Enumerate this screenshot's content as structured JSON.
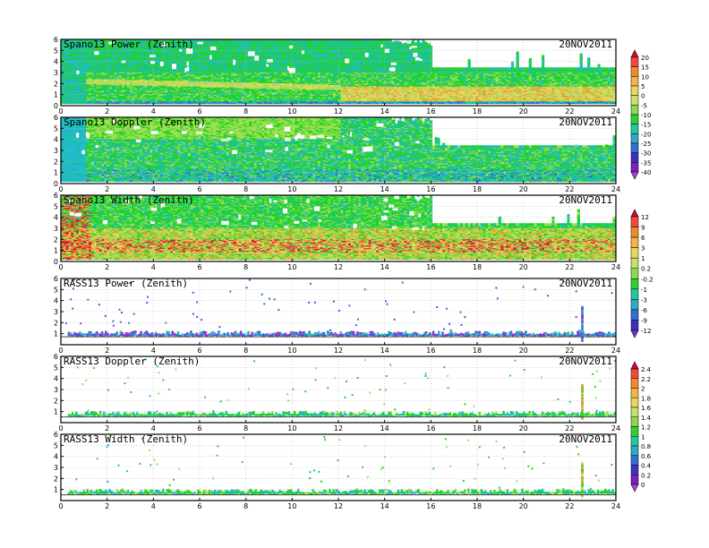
{
  "chart_data": [
    {
      "type": "heatmap",
      "title": "Spano13 Power (Zenith)",
      "date": "20NOV2011",
      "xlim": [
        0,
        24
      ],
      "ylim": [
        0,
        6
      ],
      "x_ticks": [
        "0",
        "2",
        "4",
        "6",
        "8",
        "10",
        "12",
        "14",
        "16",
        "18",
        "20",
        "22",
        "24"
      ],
      "y_ticks": [
        "0",
        "1",
        "2",
        "3",
        "4",
        "5",
        "6"
      ],
      "grid": true,
      "colorbar": "power",
      "coverage_top_before_16h": 6,
      "coverage_top_after_16h": 3.3,
      "band_height": 1.7
    },
    {
      "type": "heatmap",
      "title": "Spano13 Doppler (Zenith)",
      "date": "20NOV2011",
      "xlim": [
        0,
        24
      ],
      "ylim": [
        0,
        6
      ],
      "x_ticks": [
        "0",
        "2",
        "4",
        "6",
        "8",
        "10",
        "12",
        "14",
        "16",
        "18",
        "20",
        "22",
        "24"
      ],
      "y_ticks": [
        "0",
        "1",
        "2",
        "3",
        "4",
        "5",
        "6"
      ],
      "grid": true,
      "colorbar": "power",
      "coverage_top_before_16h": 6,
      "coverage_top_after_16h": 3.3
    },
    {
      "type": "heatmap",
      "title": "Spano13 Width (Zenith)",
      "date": "20NOV2011",
      "xlim": [
        0,
        24
      ],
      "ylim": [
        0,
        6
      ],
      "x_ticks": [
        "0",
        "2",
        "4",
        "6",
        "8",
        "10",
        "12",
        "14",
        "16",
        "18",
        "20",
        "22",
        "24"
      ],
      "y_ticks": [
        "0",
        "1",
        "2",
        "3",
        "4",
        "5",
        "6"
      ],
      "grid": true,
      "colorbar": "width",
      "coverage_top_before_16h": 6,
      "coverage_top_after_16h": 3.3,
      "band_height": 2
    },
    {
      "type": "heatmap",
      "title": "RASS13 Power (Zenith)",
      "date": "20NOV2011",
      "xlim": [
        0,
        24
      ],
      "ylim": [
        0,
        6
      ],
      "x_ticks": [
        "0",
        "2",
        "4",
        "6",
        "8",
        "10",
        "12",
        "14",
        "16",
        "18",
        "20",
        "22",
        "24"
      ],
      "y_ticks": [
        "1",
        "2",
        "3",
        "4",
        "5",
        "6"
      ],
      "grid": true,
      "colorbar": "rass",
      "layer_height": 0.8,
      "spike_time": 22.5
    },
    {
      "type": "heatmap",
      "title": "RASS13 Doppler (Zenith)",
      "date": "20NOV2011",
      "xlim": [
        0,
        24
      ],
      "ylim": [
        0,
        6
      ],
      "x_ticks": [
        "0",
        "2",
        "4",
        "6",
        "8",
        "10",
        "12",
        "14",
        "16",
        "18",
        "20",
        "22",
        "24"
      ],
      "y_ticks": [
        "1",
        "2",
        "3",
        "4",
        "5",
        "6"
      ],
      "grid": true,
      "colorbar": "doppler",
      "layer_height": 0.6,
      "spike_time": 22.5
    },
    {
      "type": "heatmap",
      "title": "RASS13 Width (Zenith)",
      "date": "20NOV2011",
      "xlim": [
        0,
        24
      ],
      "ylim": [
        0,
        6
      ],
      "x_ticks": [
        "0",
        "2",
        "4",
        "6",
        "8",
        "10",
        "12",
        "14",
        "16",
        "18",
        "20",
        "22",
        "24"
      ],
      "y_ticks": [
        "1",
        "2",
        "3",
        "4",
        "5",
        "6"
      ],
      "grid": true,
      "colorbar": "doppler",
      "layer_height": 0.6,
      "spike_time": 22.5
    }
  ],
  "colorbars": [
    {
      "id": "power",
      "labels": [
        "20",
        "15",
        "10",
        "5",
        "0",
        "-5",
        "-10",
        "-15",
        "-20",
        "-25",
        "-30",
        "-35",
        "-40"
      ],
      "colors": [
        "#e8003a",
        "#f04a3a",
        "#f48a2c",
        "#f6b24a",
        "#e8d860",
        "#c8e070",
        "#8ed850",
        "#30d030",
        "#20c8a0",
        "#30a8c8",
        "#3070d0",
        "#4030c0",
        "#7a20c0",
        "#b040e0"
      ]
    },
    {
      "id": "width",
      "labels": [
        "12",
        "9",
        "6",
        "3",
        "1",
        "0.2",
        "-0.2",
        "-1",
        "-3",
        "-6",
        "-9",
        "-12"
      ],
      "colors": [
        "#e8003a",
        "#f04a3a",
        "#f48a2c",
        "#f6b24a",
        "#e8d860",
        "#c8e070",
        "#8ed850",
        "#30d030",
        "#20c8a0",
        "#30a8c8",
        "#3070d0",
        "#4030c0",
        "#8030d0"
      ]
    },
    {
      "id": "doppler",
      "labels": [
        "2.4",
        "2.2",
        "2",
        "1.8",
        "1.6",
        "1.4",
        "1.2",
        "1",
        "0.8",
        "0.6",
        "0.4",
        "0.2",
        "0"
      ],
      "colors": [
        "#e8003a",
        "#f04a3a",
        "#f48a2c",
        "#f6b24a",
        "#e8d860",
        "#c8e070",
        "#8ed850",
        "#30d030",
        "#20c8a0",
        "#30a8c8",
        "#3070d0",
        "#4030c0",
        "#7a20c0",
        "#b040e0"
      ]
    }
  ],
  "palette": {
    "blue": "#2c6ccc",
    "teal": "#18c0a8",
    "cyan": "#26b8d8",
    "green": "#22d422",
    "lime": "#9ee050",
    "yellow": "#e2d860",
    "orange": "#f09a30",
    "red": "#e01a3a",
    "purple": "#8a30d8",
    "grid": "#bbbbbb"
  }
}
